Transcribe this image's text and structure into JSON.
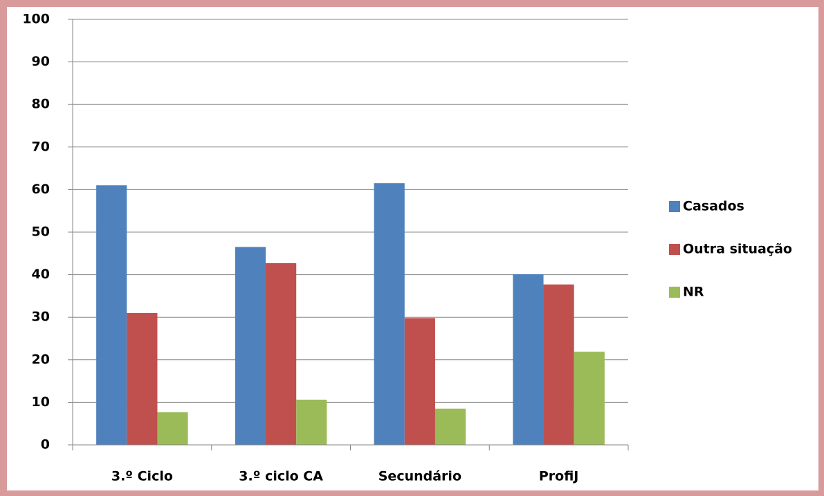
{
  "chart_data": {
    "type": "bar",
    "categories": [
      "3.º Ciclo",
      "3.º ciclo CA",
      "Secundário",
      "ProfiJ"
    ],
    "series": [
      {
        "name": "Casados",
        "color": "#4f81bd",
        "values": [
          61,
          46.5,
          61.5,
          40.1
        ]
      },
      {
        "name": "Outra situação",
        "color": "#c0504d",
        "values": [
          31,
          42.7,
          29.8,
          37.7
        ]
      },
      {
        "name": "NR",
        "color": "#9bbb59",
        "values": [
          7.7,
          10.6,
          8.5,
          21.9
        ]
      }
    ],
    "ylim": [
      0,
      100
    ],
    "yticks": [
      0,
      10,
      20,
      30,
      40,
      50,
      60,
      70,
      80,
      90,
      100
    ],
    "grid": true,
    "legend": "right"
  }
}
